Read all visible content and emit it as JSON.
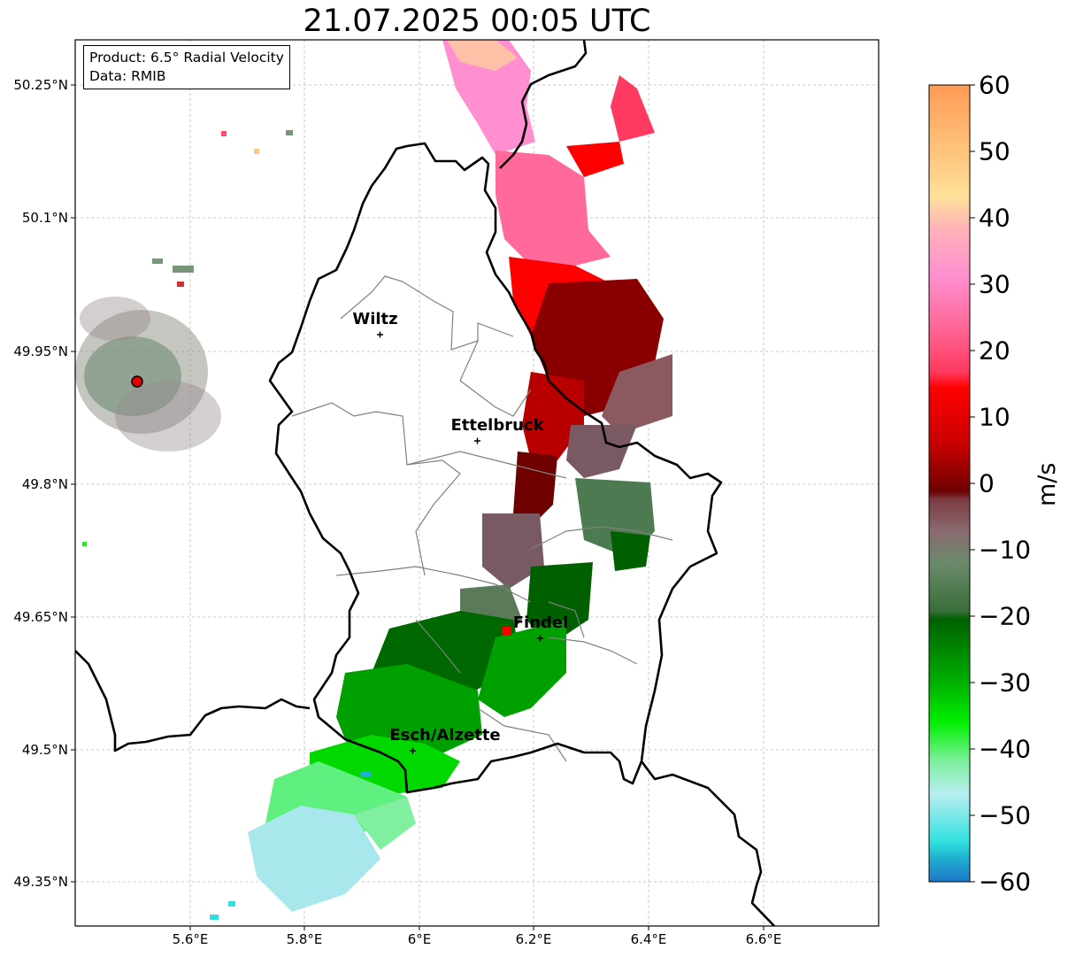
{
  "title": "21.07.2025 00:05 UTC",
  "info": {
    "product": "Product: 6.5° Radial Velocity",
    "data": "Data: RMIB"
  },
  "lat_labels": [
    "50.25°N",
    "50.1°N",
    "49.95°N",
    "49.8°N",
    "49.65°N",
    "49.5°N",
    "49.35°N"
  ],
  "lon_labels": [
    "5.6°E",
    "5.8°E",
    "6°E",
    "6.2°E",
    "6.4°E",
    "6.6°E"
  ],
  "cities": [
    {
      "name": "Wiltz",
      "lon": 5.93,
      "lat": 49.968
    },
    {
      "name": "Ettelbruck",
      "lon": 6.1,
      "lat": 49.848
    },
    {
      "name": "Findel",
      "lon": 6.21,
      "lat": 49.627
    },
    {
      "name": "Esch/Alzette",
      "lon": 5.99,
      "lat": 49.5
    }
  ],
  "colorbar": {
    "unit": "m/s",
    "ticks": [
      "60",
      "50",
      "40",
      "30",
      "20",
      "10",
      "0",
      "−10",
      "−20",
      "−30",
      "−40",
      "−50",
      "−60"
    ],
    "range": [
      -60,
      60
    ]
  },
  "radar_site": {
    "lon": 5.505,
    "lat": 49.914
  },
  "colors": {
    "accent_red": "#ff0000",
    "radar_marker": "#e00000"
  }
}
